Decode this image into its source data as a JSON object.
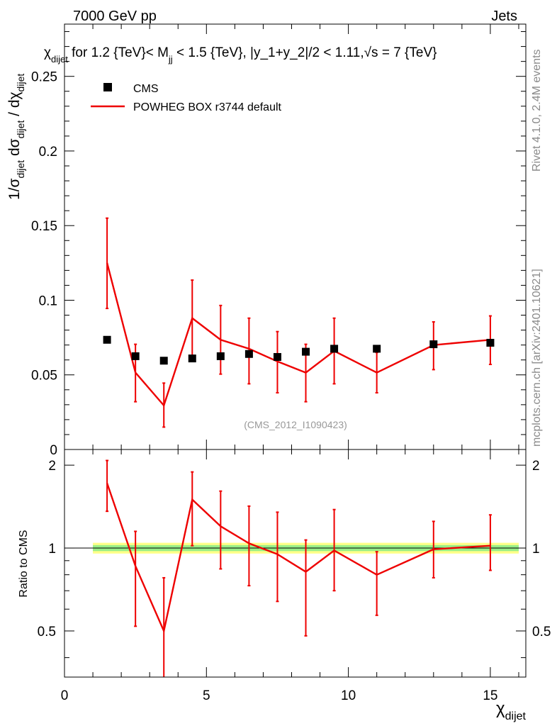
{
  "header": {
    "left_label": "7000 GeV pp",
    "right_label": "Jets"
  },
  "title": {
    "prefix": "χ",
    "prefix_sub": "dijet",
    "text_a": " for 1.2 {TeV}< M",
    "sub_jj": "jj",
    "text_b": " < 1.5 {TeV}, |y_1+y_2|/2 < 1.11,",
    "sqrt": "√s",
    "text_c": " = 7 {TeV}"
  },
  "side_labels": {
    "rivet": "Rivet 4.1.0,  2.4M events",
    "mcplots": "mcplots.cern.ch [arXiv:2401.10621]"
  },
  "watermark": "(CMS_2012_I1090423)",
  "colors": {
    "mc": "#ee0000",
    "data": "#000000",
    "band_inner": "#99ee88",
    "band_outer": "#ffff88"
  },
  "chart_data": [
    {
      "type": "scatter",
      "panel": "main",
      "ylabel_parts": [
        "1/σ",
        "dijet",
        " dσ",
        "dijet",
        " / dχ",
        "dijet"
      ],
      "xlim": [
        0,
        16.25
      ],
      "ylim": [
        0,
        0.285
      ],
      "yticks": [
        0.05,
        0.1,
        0.15,
        0.2,
        0.25
      ],
      "ytick_labels": [
        "0.05",
        "0.1",
        "0.15",
        "0.2",
        "0.25"
      ],
      "ytick_zero_label": "0",
      "legend": {
        "position": "top-left",
        "entries": [
          {
            "name": "CMS",
            "kind": "marker"
          },
          {
            "name": "POWHEG BOX r3744 default",
            "kind": "line"
          }
        ]
      },
      "series": [
        {
          "name": "CMS",
          "x": [
            1.5,
            2.5,
            3.5,
            4.5,
            5.5,
            6.5,
            7.5,
            8.5,
            9.5,
            11,
            13,
            15
          ],
          "y": [
            0.0735,
            0.0625,
            0.0595,
            0.061,
            0.0625,
            0.064,
            0.062,
            0.0655,
            0.0675,
            0.0675,
            0.0705,
            0.0715
          ]
        },
        {
          "name": "POWHEG BOX r3744 default",
          "x": [
            1.5,
            2.5,
            3.5,
            4.5,
            5.5,
            6.5,
            7.5,
            8.5,
            9.5,
            11,
            13,
            15
          ],
          "y": [
            0.125,
            0.0515,
            0.0295,
            0.088,
            0.0735,
            0.0675,
            0.059,
            0.0515,
            0.066,
            0.0515,
            0.07,
            0.0735
          ],
          "y_low": [
            0.0945,
            0.032,
            0.015,
            0.0625,
            0.0505,
            0.044,
            0.038,
            0.032,
            0.044,
            0.038,
            0.0535,
            0.057
          ],
          "y_high": [
            0.155,
            0.0705,
            0.0445,
            0.1135,
            0.0965,
            0.088,
            0.079,
            0.0705,
            0.088,
            0.065,
            0.0855,
            0.0895
          ]
        }
      ]
    },
    {
      "type": "line",
      "panel": "ratio",
      "ylabel": "Ratio to CMS",
      "xlabel": "χ",
      "xlabel_sub": "dijet",
      "xlim": [
        0,
        16.25
      ],
      "ylim": [
        0.34,
        2.28
      ],
      "xticks": [
        0,
        5,
        10,
        15
      ],
      "xtick_labels": [
        "0",
        "5",
        "10",
        "15"
      ],
      "yticks": [
        0.5,
        1,
        2
      ],
      "ytick_labels": [
        "0.5",
        "1",
        "2"
      ],
      "band": {
        "x_range": [
          1,
          16
        ],
        "inner": [
          0.975,
          1.025
        ],
        "outer": [
          0.955,
          1.045
        ]
      },
      "series": [
        {
          "name": "POWHEG BOX r3744 default",
          "x": [
            1.5,
            2.5,
            3.5,
            4.5,
            5.5,
            6.5,
            7.5,
            8.5,
            9.5,
            11,
            13,
            15
          ],
          "y": [
            1.72,
            0.86,
            0.5,
            1.5,
            1.2,
            1.04,
            0.95,
            0.82,
            0.98,
            0.8,
            0.99,
            1.02
          ],
          "y_low": [
            1.36,
            0.52,
            0.34,
            1.02,
            0.84,
            0.73,
            0.64,
            0.48,
            0.7,
            0.57,
            0.78,
            0.83
          ],
          "y_high": [
            2.08,
            1.15,
            0.78,
            1.89,
            1.61,
            1.42,
            1.35,
            1.07,
            1.38,
            0.97,
            1.25,
            1.32
          ]
        }
      ]
    }
  ]
}
